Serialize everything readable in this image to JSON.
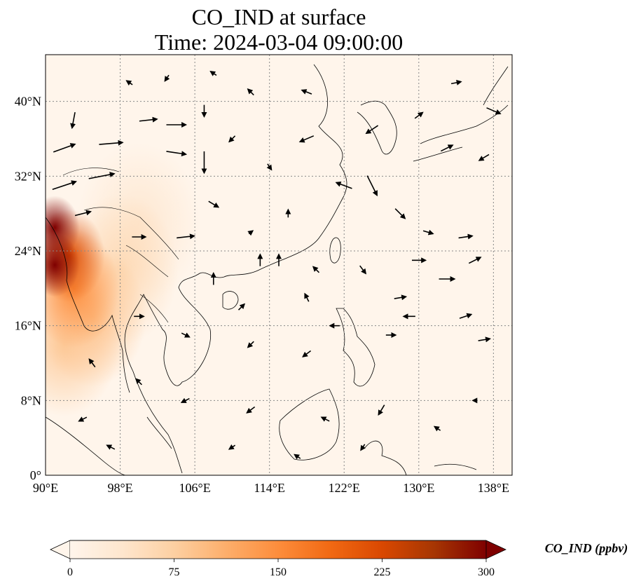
{
  "title": {
    "line1": "CO_IND at surface",
    "line2": "Time: 2024-03-04 09:00:00"
  },
  "map": {
    "lon_range": [
      90,
      140
    ],
    "lat_range": [
      0,
      45
    ],
    "lon_ticks": [
      {
        "value": 90,
        "label": "90°E"
      },
      {
        "value": 98,
        "label": "98°E"
      },
      {
        "value": 106,
        "label": "106°E"
      },
      {
        "value": 114,
        "label": "114°E"
      },
      {
        "value": 122,
        "label": "122°E"
      },
      {
        "value": 130,
        "label": "130°E"
      },
      {
        "value": 138,
        "label": "138°E"
      }
    ],
    "lat_ticks": [
      {
        "value": 0,
        "label": "0°"
      },
      {
        "value": 8,
        "label": "8°N"
      },
      {
        "value": 16,
        "label": "16°N"
      },
      {
        "value": 24,
        "label": "24°N"
      },
      {
        "value": 32,
        "label": "32°N"
      },
      {
        "value": 40,
        "label": "40°N"
      }
    ],
    "gridlines": true,
    "colors": {
      "background": "#fff5eb",
      "low": "#fdd0a2",
      "mid": "#fd8d3c",
      "high": "#d94801",
      "max": "#7f0000"
    },
    "concentration_plumes": [
      {
        "lon": 91.0,
        "lat": 26.5,
        "value": 300
      },
      {
        "lon": 91.0,
        "lat": 22.5,
        "value": 300
      },
      {
        "lon": 92.5,
        "lat": 23.5,
        "value": 220
      },
      {
        "lon": 93.0,
        "lat": 20.0,
        "value": 150
      },
      {
        "lon": 95.0,
        "lat": 17.0,
        "value": 90
      },
      {
        "lon": 92.0,
        "lat": 14.0,
        "value": 80
      },
      {
        "lon": 98.0,
        "lat": 22.0,
        "value": 60
      },
      {
        "lon": 100.0,
        "lat": 27.0,
        "value": 35
      }
    ],
    "wind_vectors": [
      {
        "lon": 93,
        "lat": 38,
        "u": -0.3,
        "v": -1.6
      },
      {
        "lon": 92,
        "lat": 35,
        "u": 2.2,
        "v": 0.8
      },
      {
        "lon": 97,
        "lat": 35.5,
        "u": 2.4,
        "v": 0.2
      },
      {
        "lon": 101,
        "lat": 38,
        "u": 1.8,
        "v": 0.2
      },
      {
        "lon": 104,
        "lat": 37.5,
        "u": 2.0,
        "v": 0.0
      },
      {
        "lon": 107,
        "lat": 39,
        "u": 0.0,
        "v": -1.2
      },
      {
        "lon": 92,
        "lat": 31,
        "u": 2.4,
        "v": 0.8
      },
      {
        "lon": 96,
        "lat": 32,
        "u": 2.6,
        "v": 0.5
      },
      {
        "lon": 104,
        "lat": 34.5,
        "u": 2.0,
        "v": -0.3
      },
      {
        "lon": 107,
        "lat": 33.5,
        "u": 0.0,
        "v": -2.2
      },
      {
        "lon": 94,
        "lat": 28,
        "u": 1.6,
        "v": 0.4
      },
      {
        "lon": 100,
        "lat": 25.5,
        "u": 1.4,
        "v": 0.0
      },
      {
        "lon": 105,
        "lat": 25.5,
        "u": 1.8,
        "v": 0.2
      },
      {
        "lon": 112,
        "lat": 26,
        "u": 0.4,
        "v": 0.3
      },
      {
        "lon": 108,
        "lat": 21,
        "u": 0.0,
        "v": 1.2
      },
      {
        "lon": 113,
        "lat": 23,
        "u": 0.0,
        "v": 1.2
      },
      {
        "lon": 115,
        "lat": 23,
        "u": 0.0,
        "v": 1.2
      },
      {
        "lon": 118,
        "lat": 19,
        "u": -0.4,
        "v": 0.8
      },
      {
        "lon": 125,
        "lat": 31,
        "u": 1.0,
        "v": -2.0
      },
      {
        "lon": 122,
        "lat": 31,
        "u": -1.6,
        "v": 0.6
      },
      {
        "lon": 118,
        "lat": 36,
        "u": -1.4,
        "v": -0.6
      },
      {
        "lon": 125,
        "lat": 37,
        "u": -1.2,
        "v": -0.8
      },
      {
        "lon": 128,
        "lat": 28,
        "u": 1.0,
        "v": -1.0
      },
      {
        "lon": 131,
        "lat": 26,
        "u": 1.0,
        "v": -0.3
      },
      {
        "lon": 135,
        "lat": 25.5,
        "u": 1.4,
        "v": 0.2
      },
      {
        "lon": 130,
        "lat": 23,
        "u": 1.4,
        "v": 0.0
      },
      {
        "lon": 133,
        "lat": 21,
        "u": 1.6,
        "v": 0.0
      },
      {
        "lon": 128,
        "lat": 19,
        "u": 1.2,
        "v": 0.2
      },
      {
        "lon": 129,
        "lat": 17,
        "u": -1.2,
        "v": 0.0
      },
      {
        "lon": 135,
        "lat": 17,
        "u": 1.2,
        "v": 0.4
      },
      {
        "lon": 137,
        "lat": 14.5,
        "u": 1.2,
        "v": 0.2
      },
      {
        "lon": 127,
        "lat": 15,
        "u": 1.0,
        "v": 0.0
      },
      {
        "lon": 136,
        "lat": 23,
        "u": 1.2,
        "v": 0.6
      },
      {
        "lon": 133,
        "lat": 35,
        "u": 1.2,
        "v": 0.6
      },
      {
        "lon": 137,
        "lat": 34,
        "u": -1.0,
        "v": -0.6
      },
      {
        "lon": 138,
        "lat": 39,
        "u": 1.4,
        "v": -0.6
      },
      {
        "lon": 130,
        "lat": 38.5,
        "u": 0.8,
        "v": 0.6
      },
      {
        "lon": 134,
        "lat": 42,
        "u": 1.0,
        "v": 0.2
      },
      {
        "lon": 112,
        "lat": 41,
        "u": -0.6,
        "v": 0.6
      },
      {
        "lon": 118,
        "lat": 41,
        "u": -1.0,
        "v": 0.4
      },
      {
        "lon": 100,
        "lat": 17,
        "u": 1.0,
        "v": 0.0
      },
      {
        "lon": 105,
        "lat": 15,
        "u": 0.8,
        "v": -0.4
      },
      {
        "lon": 112,
        "lat": 14,
        "u": -0.6,
        "v": -0.6
      },
      {
        "lon": 118,
        "lat": 13,
        "u": -0.8,
        "v": -0.6
      },
      {
        "lon": 95,
        "lat": 12,
        "u": -0.6,
        "v": 0.8
      },
      {
        "lon": 100,
        "lat": 10,
        "u": -0.6,
        "v": 0.6
      },
      {
        "lon": 105,
        "lat": 8,
        "u": -0.8,
        "v": -0.4
      },
      {
        "lon": 112,
        "lat": 7,
        "u": -0.8,
        "v": -0.6
      },
      {
        "lon": 120,
        "lat": 6,
        "u": -0.8,
        "v": 0.4
      },
      {
        "lon": 126,
        "lat": 7,
        "u": -0.6,
        "v": -1.0
      },
      {
        "lon": 94,
        "lat": 6,
        "u": -0.8,
        "v": -0.4
      },
      {
        "lon": 97,
        "lat": 3,
        "u": -0.8,
        "v": 0.4
      },
      {
        "lon": 110,
        "lat": 3,
        "u": -0.6,
        "v": -0.4
      },
      {
        "lon": 117,
        "lat": 2,
        "u": -0.6,
        "v": 0.4
      },
      {
        "lon": 124,
        "lat": 3,
        "u": -0.4,
        "v": -0.6
      },
      {
        "lon": 132,
        "lat": 5,
        "u": -0.6,
        "v": 0.4
      },
      {
        "lon": 136,
        "lat": 8,
        "u": -0.4,
        "v": 0.0
      },
      {
        "lon": 108,
        "lat": 29,
        "u": 1.0,
        "v": -0.6
      },
      {
        "lon": 116,
        "lat": 28,
        "u": 0.0,
        "v": 0.8
      },
      {
        "lon": 119,
        "lat": 22,
        "u": -0.6,
        "v": 0.6
      },
      {
        "lon": 124,
        "lat": 22,
        "u": 0.6,
        "v": -0.8
      },
      {
        "lon": 121,
        "lat": 16,
        "u": -1.0,
        "v": 0.0
      },
      {
        "lon": 111,
        "lat": 18,
        "u": 0.6,
        "v": 0.6
      },
      {
        "lon": 114,
        "lat": 33,
        "u": 0.4,
        "v": -0.6
      },
      {
        "lon": 110,
        "lat": 36,
        "u": -0.6,
        "v": -0.6
      },
      {
        "lon": 99,
        "lat": 42,
        "u": -0.6,
        "v": 0.4
      },
      {
        "lon": 103,
        "lat": 42.5,
        "u": -0.4,
        "v": -0.6
      },
      {
        "lon": 108,
        "lat": 43,
        "u": -0.6,
        "v": 0.4
      }
    ]
  },
  "colorbar": {
    "label": "CO_IND (ppbv)",
    "vmin": 0,
    "vmax": 300,
    "ticks": [
      {
        "value": 0,
        "label": "0"
      },
      {
        "value": 75,
        "label": "75"
      },
      {
        "value": 150,
        "label": "150"
      },
      {
        "value": 225,
        "label": "225"
      },
      {
        "value": 300,
        "label": "300"
      }
    ],
    "colormap": [
      "#fff5eb",
      "#fee6ce",
      "#fdd0a2",
      "#fdae6b",
      "#fd8d3c",
      "#f16913",
      "#d94801",
      "#a63603",
      "#7f0000"
    ],
    "extend": "both"
  }
}
